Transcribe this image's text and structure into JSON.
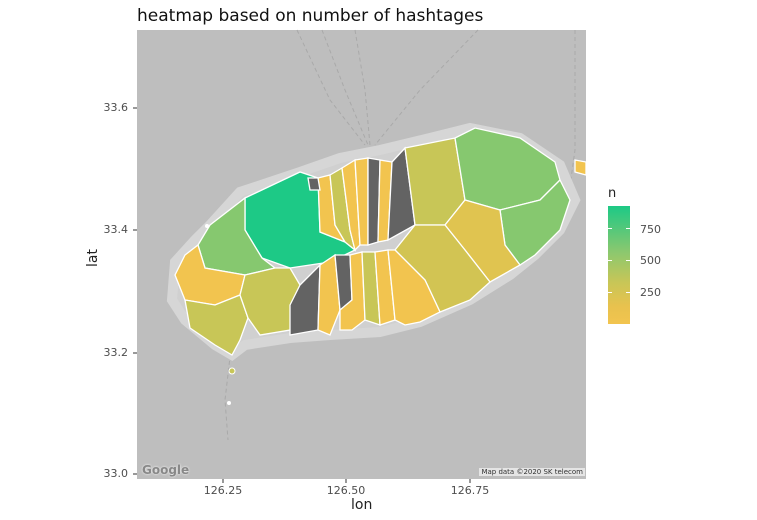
{
  "title": "heatmap based on number of hashtages",
  "axes": {
    "xlabel": "lon",
    "ylabel": "lat",
    "xticks": [
      "126.25",
      "126.50",
      "126.75"
    ],
    "yticks": [
      "33.6",
      "33.4",
      "33.2",
      "33.0"
    ]
  },
  "legend": {
    "title": "n",
    "labels": [
      "750",
      "500",
      "250"
    ],
    "values": [
      750,
      500,
      250
    ],
    "range": [
      0,
      920
    ]
  },
  "basemap": {
    "google_logo": "Google",
    "attribution": "Map data ©2020 SK telecom"
  },
  "colors": {
    "background": "#bebebe",
    "no_data": "#636363",
    "high": "#1dc986",
    "mid_high": "#86c86f",
    "mid": "#c8c657",
    "low": "#f2c44f",
    "border": "#ffffff"
  },
  "chart_data": {
    "type": "heatmap",
    "title": "heatmap based on number of hashtages",
    "xlabel": "lon",
    "ylabel": "lat",
    "xlim": [
      126.1,
      126.98
    ],
    "ylim": [
      33.0,
      33.73
    ],
    "legend_title": "n",
    "legend_breaks": [
      250,
      500,
      750
    ]
  }
}
